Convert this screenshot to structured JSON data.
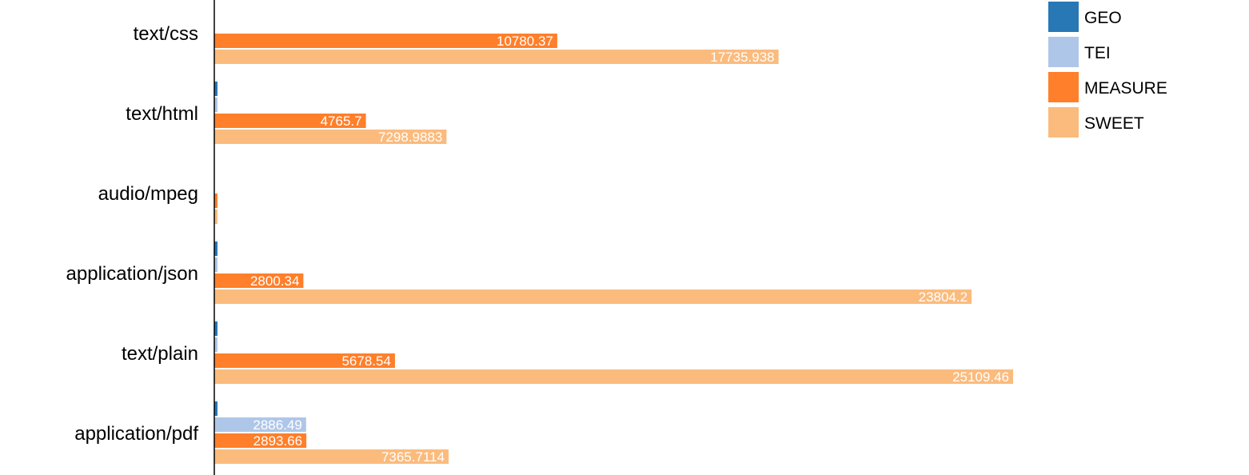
{
  "chart_data": {
    "type": "bar",
    "orientation": "horizontal",
    "categories": [
      "text/css",
      "text/html",
      "audio/mpeg",
      "application/json",
      "text/plain",
      "application/pdf"
    ],
    "series": [
      {
        "name": "GEO",
        "color": "#2878b5",
        "values": [
          null,
          3.7888,
          null,
          0.6,
          3.6,
          0.8
        ],
        "labels": [
          "",
          "3.7888",
          "",
          "",
          "3.6",
          ""
        ]
      },
      {
        "name": "TEI",
        "color": "#aec7e8",
        "values": [
          null,
          3.7888,
          null,
          0.4,
          3.6,
          2886.49
        ],
        "labels": [
          "",
          "3.7888",
          "",
          "",
          "3.6",
          "2886.49"
        ]
      },
      {
        "name": "MEASURE",
        "color": "#ff7f2a",
        "values": [
          10780.37,
          4765.7,
          0.6,
          2800.34,
          5678.54,
          2893.66
        ],
        "labels": [
          "10780.37",
          "4765.7",
          "",
          "2800.34",
          "5678.54",
          "2893.66"
        ]
      },
      {
        "name": "SWEET",
        "color": "#fbbb7d",
        "values": [
          17735.938,
          7298.9883,
          0.6,
          23804.2,
          25109.46,
          7365.7114
        ],
        "labels": [
          "17735.938",
          "7298.9883",
          "",
          "23804.2",
          "25109.46",
          "7365.7114"
        ]
      }
    ],
    "legend_position": "top-right",
    "grid": false
  }
}
